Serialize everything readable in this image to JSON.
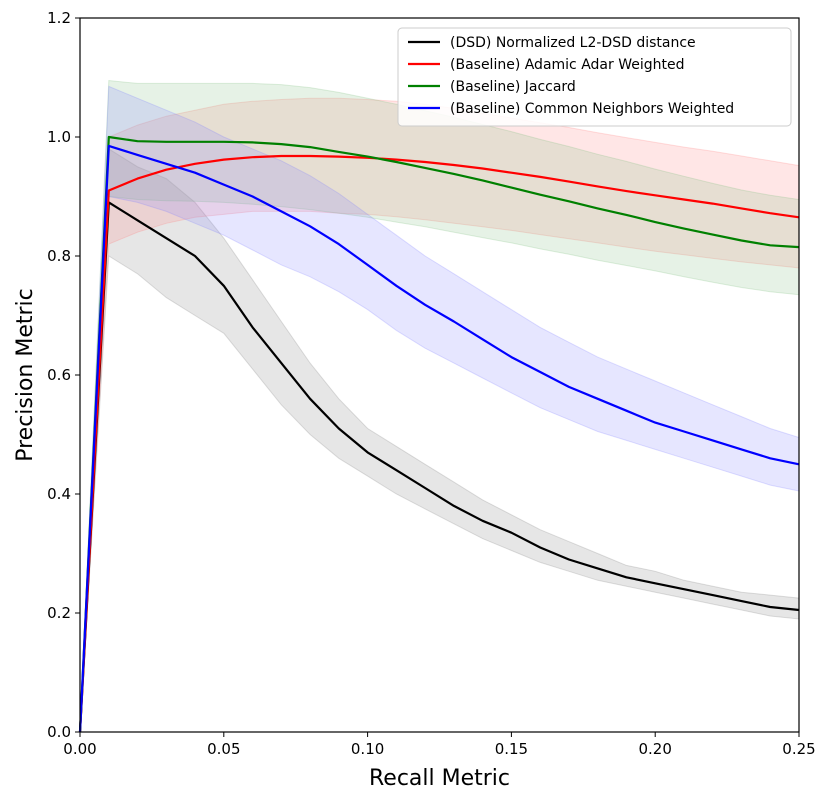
{
  "chart_data": {
    "type": "line",
    "xlabel": "Recall Metric",
    "ylabel": "Precision Metric",
    "xlim": [
      0.0,
      0.25
    ],
    "ylim": [
      0.0,
      1.2
    ],
    "x_ticks": [
      "0.00",
      "0.05",
      "0.10",
      "0.15",
      "0.20",
      "0.25"
    ],
    "y_ticks": [
      "0.0",
      "0.2",
      "0.4",
      "0.6",
      "0.8",
      "1.0",
      "1.2"
    ],
    "grid": false,
    "legend_position": "top-right",
    "series": [
      {
        "name": "(DSD) Normalized L2-DSD distance",
        "color": "#000000",
        "band_color": "#808080",
        "x": [
          0.0,
          0.01,
          0.02,
          0.03,
          0.04,
          0.05,
          0.06,
          0.07,
          0.08,
          0.09,
          0.1,
          0.11,
          0.12,
          0.13,
          0.14,
          0.15,
          0.16,
          0.17,
          0.18,
          0.19,
          0.2,
          0.21,
          0.22,
          0.23,
          0.24,
          0.25
        ],
        "y": [
          0.0,
          0.89,
          0.86,
          0.83,
          0.8,
          0.75,
          0.68,
          0.62,
          0.56,
          0.51,
          0.47,
          0.44,
          0.41,
          0.38,
          0.355,
          0.335,
          0.31,
          0.29,
          0.275,
          0.26,
          0.25,
          0.24,
          0.23,
          0.22,
          0.21,
          0.205
        ],
        "lower": [
          0.0,
          0.8,
          0.77,
          0.73,
          0.7,
          0.67,
          0.61,
          0.55,
          0.5,
          0.46,
          0.43,
          0.4,
          0.375,
          0.35,
          0.325,
          0.305,
          0.285,
          0.27,
          0.255,
          0.245,
          0.235,
          0.225,
          0.215,
          0.205,
          0.195,
          0.19
        ],
        "upper": [
          0.0,
          0.98,
          0.95,
          0.93,
          0.89,
          0.83,
          0.76,
          0.69,
          0.62,
          0.56,
          0.51,
          0.48,
          0.45,
          0.42,
          0.39,
          0.365,
          0.34,
          0.32,
          0.3,
          0.28,
          0.27,
          0.255,
          0.245,
          0.235,
          0.23,
          0.225
        ]
      },
      {
        "name": "(Baseline) Adamic Adar Weighted",
        "color": "#ff0000",
        "band_color": "#ff8080",
        "x": [
          0.0,
          0.01,
          0.02,
          0.03,
          0.04,
          0.05,
          0.06,
          0.07,
          0.08,
          0.09,
          0.1,
          0.11,
          0.12,
          0.13,
          0.14,
          0.15,
          0.16,
          0.17,
          0.18,
          0.19,
          0.2,
          0.21,
          0.22,
          0.23,
          0.24,
          0.25
        ],
        "y": [
          0.0,
          0.91,
          0.93,
          0.945,
          0.955,
          0.962,
          0.966,
          0.968,
          0.968,
          0.967,
          0.965,
          0.962,
          0.958,
          0.953,
          0.947,
          0.94,
          0.933,
          0.925,
          0.917,
          0.909,
          0.902,
          0.895,
          0.888,
          0.88,
          0.872,
          0.865
        ],
        "lower": [
          0.0,
          0.82,
          0.84,
          0.855,
          0.865,
          0.87,
          0.875,
          0.875,
          0.875,
          0.872,
          0.87,
          0.866,
          0.861,
          0.855,
          0.849,
          0.843,
          0.836,
          0.829,
          0.822,
          0.815,
          0.808,
          0.802,
          0.796,
          0.79,
          0.785,
          0.78
        ],
        "upper": [
          0.0,
          1.0,
          1.02,
          1.035,
          1.045,
          1.055,
          1.06,
          1.063,
          1.065,
          1.065,
          1.063,
          1.06,
          1.055,
          1.048,
          1.04,
          1.032,
          1.024,
          1.016,
          1.007,
          0.999,
          0.991,
          0.983,
          0.976,
          0.968,
          0.96,
          0.952
        ]
      },
      {
        "name": "(Baseline) Jaccard",
        "color": "#008000",
        "band_color": "#80c080",
        "x": [
          0.0,
          0.01,
          0.02,
          0.03,
          0.04,
          0.05,
          0.06,
          0.07,
          0.08,
          0.09,
          0.1,
          0.11,
          0.12,
          0.13,
          0.14,
          0.15,
          0.16,
          0.17,
          0.18,
          0.19,
          0.2,
          0.21,
          0.22,
          0.23,
          0.24,
          0.25
        ],
        "y": [
          0.0,
          1.0,
          0.993,
          0.992,
          0.992,
          0.992,
          0.991,
          0.988,
          0.983,
          0.975,
          0.967,
          0.958,
          0.948,
          0.938,
          0.927,
          0.915,
          0.903,
          0.892,
          0.88,
          0.869,
          0.857,
          0.846,
          0.836,
          0.826,
          0.818,
          0.815
        ],
        "lower": [
          0.0,
          0.9,
          0.895,
          0.893,
          0.892,
          0.89,
          0.887,
          0.883,
          0.878,
          0.872,
          0.865,
          0.857,
          0.849,
          0.84,
          0.831,
          0.822,
          0.812,
          0.803,
          0.793,
          0.784,
          0.775,
          0.765,
          0.756,
          0.747,
          0.74,
          0.735
        ],
        "upper": [
          0.0,
          1.095,
          1.09,
          1.09,
          1.09,
          1.09,
          1.09,
          1.088,
          1.083,
          1.075,
          1.065,
          1.055,
          1.044,
          1.033,
          1.021,
          1.009,
          0.996,
          0.984,
          0.971,
          0.959,
          0.946,
          0.934,
          0.922,
          0.911,
          0.902,
          0.895
        ]
      },
      {
        "name": "(Baseline) Common Neighbors Weighted",
        "color": "#0000ff",
        "band_color": "#8080ff",
        "x": [
          0.0,
          0.01,
          0.02,
          0.03,
          0.04,
          0.05,
          0.06,
          0.07,
          0.08,
          0.09,
          0.1,
          0.11,
          0.12,
          0.13,
          0.14,
          0.15,
          0.16,
          0.17,
          0.18,
          0.19,
          0.2,
          0.21,
          0.22,
          0.23,
          0.24,
          0.25
        ],
        "y": [
          0.0,
          0.985,
          0.97,
          0.955,
          0.94,
          0.92,
          0.9,
          0.875,
          0.85,
          0.82,
          0.785,
          0.75,
          0.718,
          0.69,
          0.66,
          0.63,
          0.605,
          0.58,
          0.56,
          0.54,
          0.52,
          0.505,
          0.49,
          0.475,
          0.46,
          0.45
        ],
        "lower": [
          0.0,
          0.9,
          0.89,
          0.875,
          0.855,
          0.835,
          0.81,
          0.785,
          0.765,
          0.74,
          0.71,
          0.675,
          0.645,
          0.62,
          0.595,
          0.57,
          0.545,
          0.525,
          0.505,
          0.49,
          0.475,
          0.46,
          0.445,
          0.43,
          0.415,
          0.405
        ],
        "upper": [
          0.0,
          1.085,
          1.065,
          1.045,
          1.025,
          1.0,
          0.98,
          0.96,
          0.935,
          0.905,
          0.87,
          0.835,
          0.8,
          0.77,
          0.74,
          0.71,
          0.68,
          0.655,
          0.63,
          0.61,
          0.59,
          0.57,
          0.55,
          0.53,
          0.51,
          0.495
        ]
      }
    ]
  }
}
